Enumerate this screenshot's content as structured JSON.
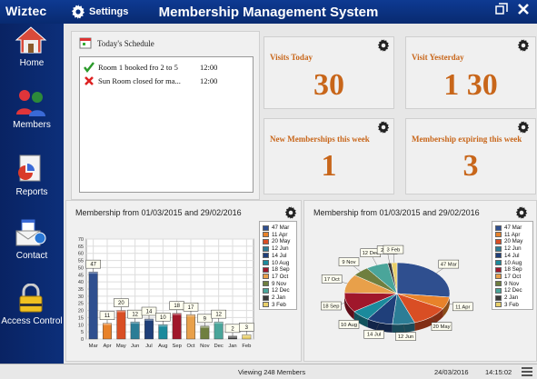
{
  "header": {
    "brand": "Wiztec",
    "settings_label": "Settings",
    "title": "Membership Management System"
  },
  "sidebar": {
    "items": [
      {
        "label": "Home",
        "icon": "home-icon"
      },
      {
        "label": "Members",
        "icon": "members-icon"
      },
      {
        "label": "Reports",
        "icon": "reports-icon"
      },
      {
        "label": "Contact",
        "icon": "contact-icon"
      },
      {
        "label": "Access Control",
        "icon": "lock-icon"
      }
    ]
  },
  "schedule": {
    "title": "Today's Schedule",
    "items": [
      {
        "status": "ok",
        "text": "Room 1 booked fro 2 to 5",
        "time": "12:00"
      },
      {
        "status": "closed",
        "text": "Sun Room closed for ma...",
        "time": "12:00"
      }
    ]
  },
  "stats": [
    {
      "title": "Visits Today",
      "value": "30"
    },
    {
      "title": "Visit Yesterday",
      "value": "1 30"
    },
    {
      "title": "New Memberships this week",
      "value": "1"
    },
    {
      "title": "Membership expiring this week",
      "value": "3"
    }
  ],
  "charts": {
    "bar_title": "Membership from 01/03/2015 and 29/02/2016",
    "pie_title": "Membership from 01/03/2015 and 29/02/2016"
  },
  "chart_data": [
    {
      "type": "bar",
      "categories": [
        "Mar",
        "Apr",
        "May",
        "Jun",
        "Jul",
        "Aug",
        "Sep",
        "Oct",
        "Nov",
        "Dec",
        "Jan",
        "Feb"
      ],
      "values": [
        47,
        11,
        20,
        12,
        14,
        10,
        18,
        17,
        9,
        12,
        2,
        3
      ],
      "ylim": [
        0,
        70
      ],
      "yticks": [
        0,
        5,
        10,
        15,
        20,
        25,
        30,
        35,
        40,
        45,
        50,
        55,
        60,
        65,
        70
      ],
      "grid": true,
      "colors": [
        "#2f4f8f",
        "#e8822a",
        "#d94e24",
        "#2c7d96",
        "#1f3f7a",
        "#1b8a9c",
        "#a0172b",
        "#e8a04a",
        "#6f7f3f",
        "#4aa59a",
        "#3a3a3a",
        "#e8cf6a"
      ]
    },
    {
      "type": "pie",
      "slices": [
        {
          "label": "47 Mar",
          "value": 47
        },
        {
          "label": "11 Apr",
          "value": 11
        },
        {
          "label": "20 May",
          "value": 20
        },
        {
          "label": "12 Jun",
          "value": 12
        },
        {
          "label": "14 Jul",
          "value": 14
        },
        {
          "label": "10 Aug",
          "value": 10
        },
        {
          "label": "18 Sep",
          "value": 18
        },
        {
          "label": "17 Oct",
          "value": 17
        },
        {
          "label": "9 Nov",
          "value": 9
        },
        {
          "label": "12 Dec",
          "value": 12
        },
        {
          "label": "2 Jan",
          "value": 2
        },
        {
          "label": "3 Feb",
          "value": 3
        }
      ],
      "legend_position": "right"
    }
  ],
  "status": {
    "viewing": "Viewing 248 Members",
    "date": "24/03/2016",
    "time": "14:15:02"
  }
}
